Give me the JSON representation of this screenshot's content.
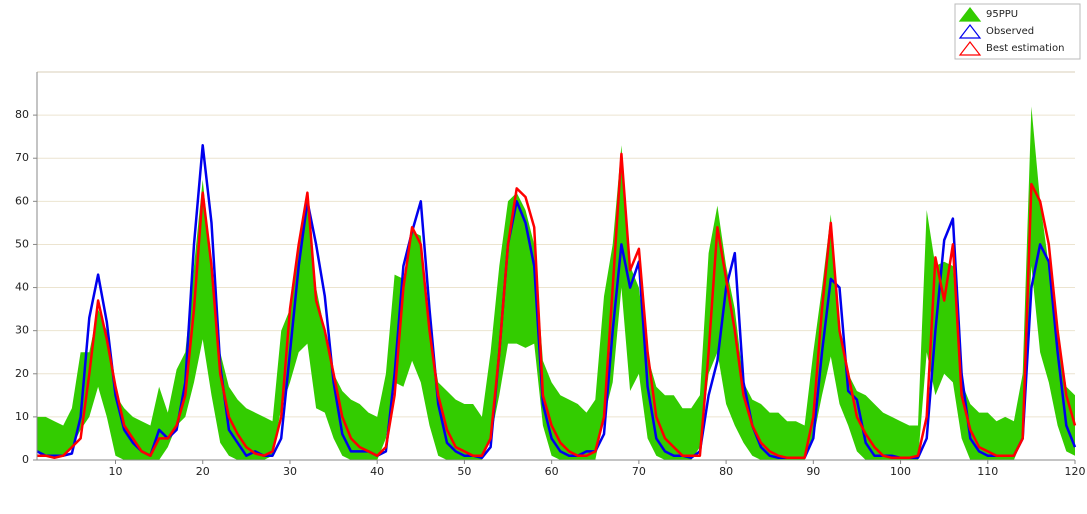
{
  "chart_data": {
    "type": "line",
    "x": [
      1,
      2,
      3,
      4,
      5,
      6,
      7,
      8,
      9,
      10,
      11,
      12,
      13,
      14,
      15,
      16,
      17,
      18,
      19,
      20,
      21,
      22,
      23,
      24,
      25,
      26,
      27,
      28,
      29,
      30,
      31,
      32,
      33,
      34,
      35,
      36,
      37,
      38,
      39,
      40,
      41,
      42,
      43,
      44,
      45,
      46,
      47,
      48,
      49,
      50,
      51,
      52,
      53,
      54,
      55,
      56,
      57,
      58,
      59,
      60,
      61,
      62,
      63,
      64,
      65,
      66,
      67,
      68,
      69,
      70,
      71,
      72,
      73,
      74,
      75,
      76,
      77,
      78,
      79,
      80,
      81,
      82,
      83,
      84,
      85,
      86,
      87,
      88,
      89,
      90,
      91,
      92,
      93,
      94,
      95,
      96,
      97,
      98,
      99,
      100,
      101,
      102,
      103,
      104,
      105,
      106,
      107,
      108,
      109,
      110,
      111,
      112,
      113,
      114,
      115,
      116,
      117,
      118,
      119,
      120
    ],
    "xlim": [
      1,
      120
    ],
    "ylim": [
      0,
      90
    ],
    "xticks": [
      10,
      20,
      30,
      40,
      50,
      60,
      70,
      80,
      90,
      100,
      110,
      120
    ],
    "yticks": [
      0,
      10,
      20,
      30,
      40,
      50,
      60,
      70,
      80
    ],
    "grid": true,
    "legend": "top-right",
    "series": [
      {
        "name": "95PPU",
        "color": "#33cc00",
        "upper": [
          10,
          10,
          9,
          8,
          12,
          25,
          25,
          35,
          30,
          15,
          12,
          10,
          9,
          8,
          17,
          11,
          21,
          25,
          45,
          65,
          45,
          25,
          17,
          14,
          12,
          11,
          10,
          9,
          30,
          35,
          50,
          62,
          40,
          30,
          20,
          16,
          14,
          13,
          11,
          10,
          20,
          43,
          42,
          53,
          52,
          30,
          18,
          16,
          14,
          13,
          13,
          10,
          25,
          45,
          60,
          62,
          58,
          50,
          23,
          18,
          15,
          14,
          13,
          11,
          14,
          38,
          50,
          73,
          45,
          40,
          24,
          17,
          15,
          15,
          12,
          12,
          15,
          48,
          59,
          45,
          35,
          18,
          14,
          13,
          11,
          11,
          9,
          9,
          8,
          25,
          40,
          57,
          30,
          20,
          16,
          15,
          13,
          11,
          10,
          9,
          8,
          8,
          58,
          45,
          46,
          45,
          18,
          13,
          11,
          11,
          9,
          10,
          9,
          20,
          82,
          60,
          45,
          30,
          17,
          15
        ],
        "lower": [
          2,
          1,
          0.5,
          1,
          3,
          7,
          10,
          17,
          10,
          1,
          0,
          0,
          0,
          0,
          0,
          3,
          8,
          10,
          18,
          28,
          15,
          4,
          1,
          0,
          0,
          0,
          0,
          1,
          12,
          18,
          25,
          27,
          12,
          11,
          5,
          1,
          0,
          0,
          0,
          0,
          5,
          18,
          17,
          23,
          18,
          8,
          1,
          0,
          0,
          0,
          0,
          0,
          5,
          15,
          27,
          27,
          26,
          27,
          8,
          1,
          0,
          0,
          0,
          0,
          0,
          10,
          18,
          40,
          16,
          20,
          5,
          1,
          0,
          0,
          0,
          0,
          3,
          20,
          25,
          13,
          8,
          4,
          1,
          0,
          0,
          0,
          0,
          0,
          0,
          5,
          15,
          24,
          13,
          8,
          2,
          0,
          0,
          0,
          0,
          0,
          0,
          0,
          25,
          15,
          20,
          18,
          5,
          0,
          0,
          0,
          0,
          0,
          0,
          5,
          45,
          25,
          18,
          8,
          2,
          1
        ]
      },
      {
        "name": "Observed",
        "color": "#0000ee",
        "values": [
          2,
          1,
          1,
          1,
          1.5,
          10,
          33,
          43,
          32,
          15,
          7,
          4,
          2,
          1,
          7,
          5,
          7,
          18,
          50,
          73,
          55,
          22,
          7,
          4,
          1,
          2,
          1,
          1,
          5,
          25,
          45,
          60,
          50,
          38,
          18,
          6,
          2,
          2,
          2,
          1,
          2,
          20,
          45,
          53,
          60,
          35,
          13,
          4,
          2,
          1,
          1,
          0.5,
          3,
          25,
          50,
          60,
          55,
          45,
          13,
          5,
          2,
          1,
          1,
          2,
          2,
          6,
          30,
          50,
          40,
          46,
          17,
          5,
          2,
          1,
          1,
          0.5,
          2,
          15,
          23,
          40,
          48,
          18,
          8,
          3,
          1,
          0.5,
          0.5,
          0.5,
          0.5,
          5,
          25,
          42,
          40,
          16,
          14,
          4,
          1,
          1,
          1,
          0.5,
          0.5,
          0.5,
          5,
          30,
          51,
          56,
          20,
          5,
          2,
          1,
          1,
          1,
          1,
          5,
          40,
          50,
          46,
          25,
          8,
          3
        ]
      },
      {
        "name": "Best estimation",
        "color": "#ff0000",
        "values": [
          1,
          1,
          0.5,
          1,
          3,
          5,
          20,
          37,
          28,
          17,
          8,
          5,
          2,
          1,
          5,
          5,
          8,
          15,
          35,
          62,
          45,
          20,
          10,
          6,
          3,
          1.5,
          1,
          2,
          10,
          35,
          50,
          62,
          37,
          30,
          20,
          10,
          5,
          3,
          2,
          1,
          3,
          15,
          40,
          54,
          50,
          30,
          15,
          7,
          3,
          2,
          1,
          1,
          5,
          25,
          50,
          63,
          61,
          54,
          15,
          8,
          4,
          2,
          1,
          1,
          2,
          10,
          40,
          71,
          44,
          49,
          25,
          10,
          5,
          3,
          1,
          1,
          1,
          25,
          54,
          42,
          30,
          15,
          8,
          4,
          2,
          1,
          0.5,
          0.5,
          0.5,
          10,
          35,
          55,
          30,
          20,
          10,
          6,
          3,
          1,
          0.5,
          0.5,
          0.5,
          1,
          10,
          47,
          37,
          50,
          15,
          7,
          3,
          2,
          1,
          1,
          1,
          5,
          64,
          60,
          50,
          30,
          15,
          8
        ]
      }
    ]
  }
}
